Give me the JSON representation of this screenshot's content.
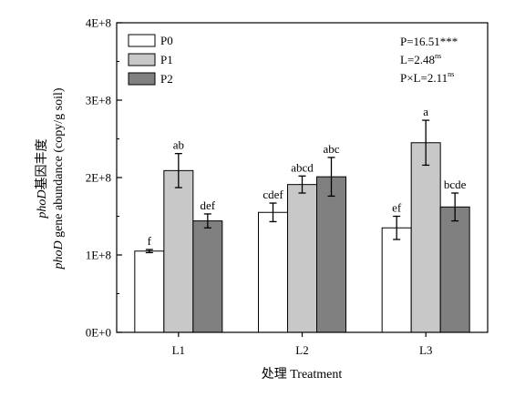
{
  "chart_data": {
    "type": "bar",
    "categories": [
      "L1",
      "L2",
      "L3"
    ],
    "series": [
      {
        "name": "P0",
        "color": "#ffffff",
        "values": [
          105000000,
          155000000,
          135000000
        ],
        "errors": [
          2000000,
          12000000,
          15000000
        ],
        "labels": [
          "f",
          "cdef",
          "ef"
        ]
      },
      {
        "name": "P1",
        "color": "#c8c8c8",
        "values": [
          209000000,
          191000000,
          245000000
        ],
        "errors": [
          22000000,
          11000000,
          29000000
        ],
        "labels": [
          "ab",
          "abcd",
          "a"
        ]
      },
      {
        "name": "P2",
        "color": "#808080",
        "values": [
          144000000,
          201000000,
          162000000
        ],
        "errors": [
          9000000,
          25000000,
          18000000
        ],
        "labels": [
          "def",
          "abc",
          "bcde"
        ]
      }
    ],
    "ylim": [
      0,
      400000000
    ],
    "yticks": [
      "0E+0",
      "1E+8",
      "2E+8",
      "3E+8",
      "4E+8"
    ],
    "xlabel": "处理 Treatment",
    "ylabel_line1": {
      "italic": "phoD",
      "rest": "基因丰度"
    },
    "ylabel_line2": {
      "italic": "phoD",
      "rest": " gene abundance (copy/g soil)"
    },
    "legend_position": "top-left",
    "stats": [
      {
        "main": "P=16.51***",
        "sup": ""
      },
      {
        "main": "L=2.48",
        "sup": "ns"
      },
      {
        "main": "P×L=2.11",
        "sup": "ns"
      }
    ],
    "grid": false
  }
}
